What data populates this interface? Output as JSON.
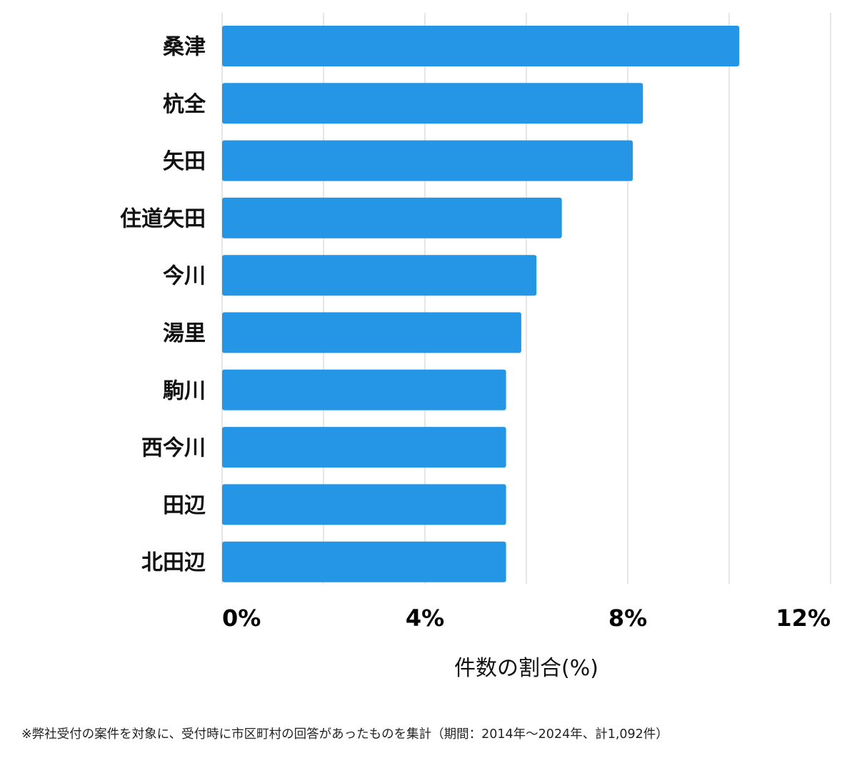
{
  "chart_data": {
    "type": "bar",
    "orientation": "horizontal",
    "categories": [
      "桑津",
      "杭全",
      "矢田",
      "住道矢田",
      "今川",
      "湯里",
      "駒川",
      "西今川",
      "田辺",
      "北田辺"
    ],
    "values": [
      10.2,
      8.3,
      8.1,
      6.7,
      6.2,
      5.9,
      5.6,
      5.6,
      5.6,
      5.6
    ],
    "xlim": [
      0,
      12
    ],
    "xticks": [
      0,
      4,
      8,
      12
    ],
    "tick_labels": [
      "0%",
      "4%",
      "8%",
      "12%"
    ],
    "gridlines": [
      0,
      2,
      4,
      6,
      8,
      10,
      12
    ],
    "xlabel": "件数の割合(%)",
    "ylabel": "",
    "grid": true,
    "bar_color": "#2595e6",
    "grid_color": "#dddddd"
  },
  "footnote": "※弊社受付の案件を対象に、受付時に市区町村の回答があったものを集計（期間：2014年～2024年、計1,092件）"
}
